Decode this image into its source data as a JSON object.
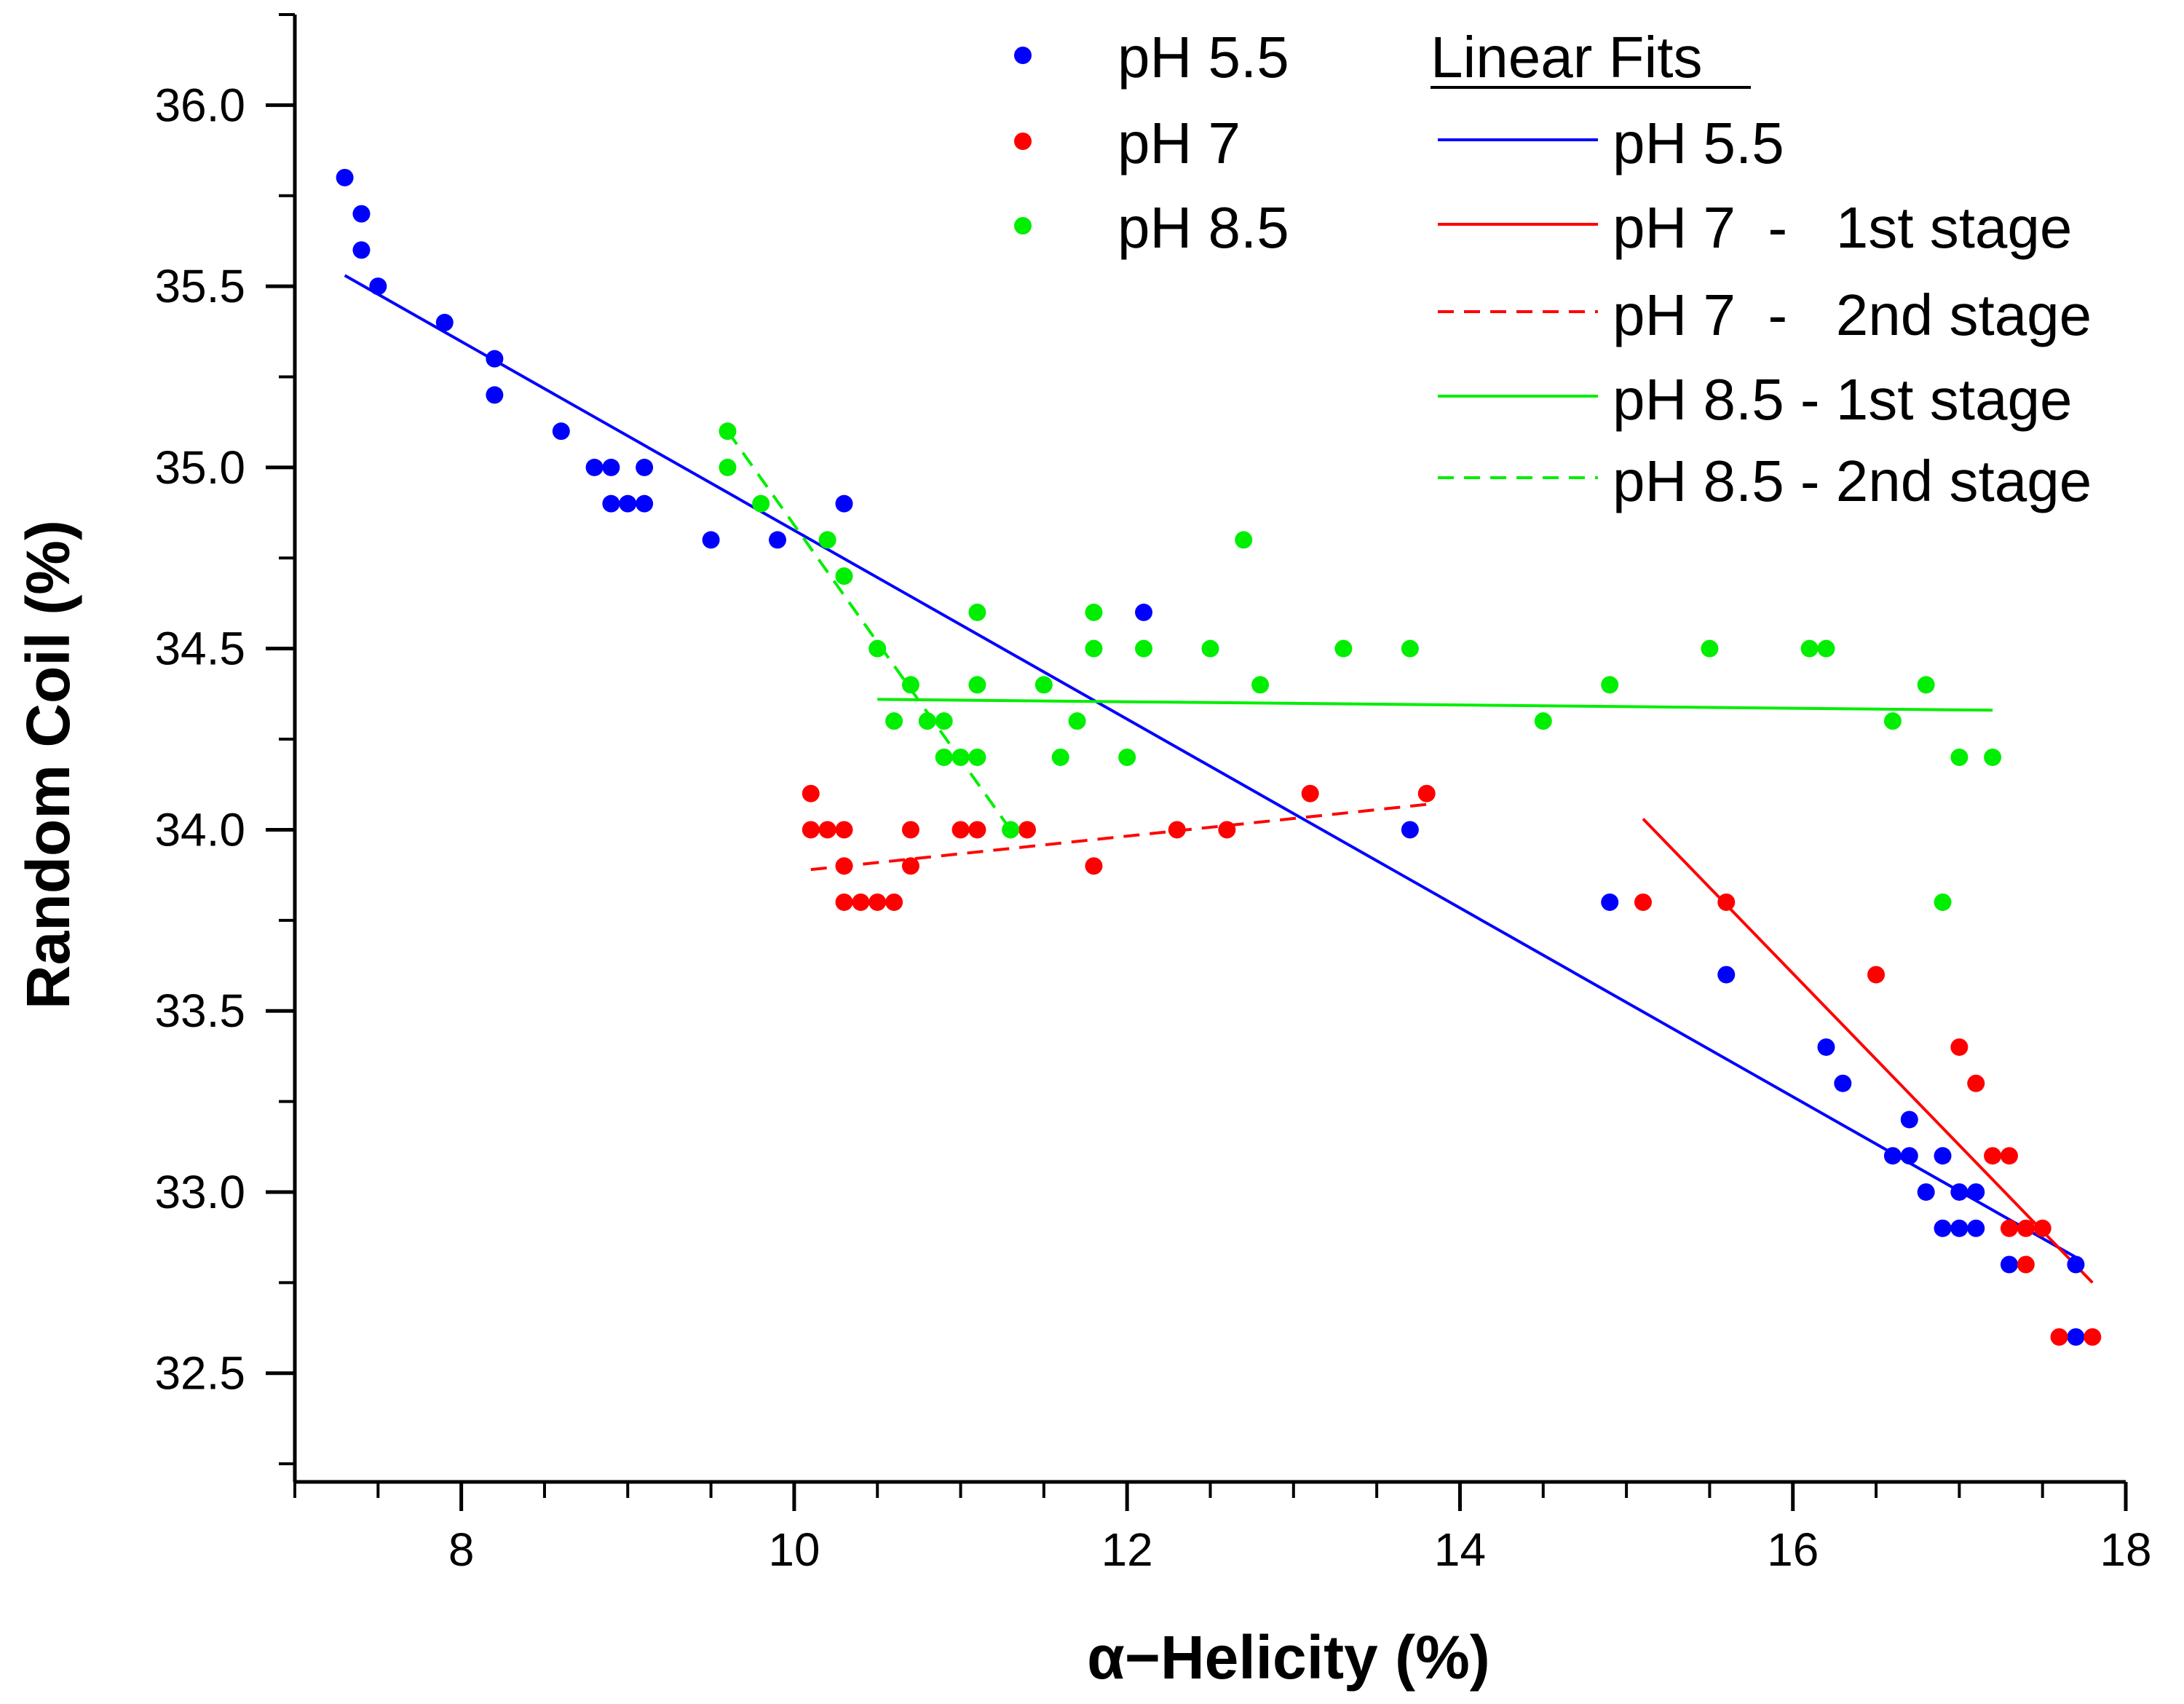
{
  "chart_data": {
    "type": "scatter",
    "xlabel": "α−Helicity (%)",
    "ylabel": "Random Coil (%)",
    "xlim": [
      7,
      18
    ],
    "ylim": [
      32.2,
      36.25
    ],
    "x_ticks": [
      8,
      10,
      12,
      14,
      16,
      18
    ],
    "y_ticks": [
      32.5,
      33.0,
      33.5,
      34.0,
      34.5,
      35.0,
      35.5,
      36.0
    ],
    "x_minor_step": 0.5,
    "y_minor_step": 0.25,
    "grid": false,
    "legend_placement": "top-right",
    "series": [
      {
        "name": "pH 5.5",
        "color": "#0000ff",
        "points": [
          [
            7.3,
            35.8
          ],
          [
            7.4,
            35.7
          ],
          [
            7.4,
            35.6
          ],
          [
            7.5,
            35.5
          ],
          [
            7.9,
            35.4
          ],
          [
            8.2,
            35.3
          ],
          [
            8.2,
            35.2
          ],
          [
            8.6,
            35.1
          ],
          [
            8.8,
            35.0
          ],
          [
            8.9,
            35.0
          ],
          [
            9.1,
            35.0
          ],
          [
            8.9,
            34.9
          ],
          [
            9.0,
            34.9
          ],
          [
            9.1,
            34.9
          ],
          [
            10.3,
            34.9
          ],
          [
            9.5,
            34.8
          ],
          [
            9.9,
            34.8
          ],
          [
            12.1,
            34.6
          ],
          [
            13.7,
            34.0
          ],
          [
            14.9,
            33.8
          ],
          [
            15.6,
            33.6
          ],
          [
            16.2,
            33.4
          ],
          [
            16.3,
            33.3
          ],
          [
            16.7,
            33.2
          ],
          [
            16.6,
            33.1
          ],
          [
            16.7,
            33.1
          ],
          [
            16.9,
            33.1
          ],
          [
            16.8,
            33.0
          ],
          [
            17.0,
            33.0
          ],
          [
            17.1,
            33.0
          ],
          [
            16.9,
            32.9
          ],
          [
            17.0,
            32.9
          ],
          [
            17.1,
            32.9
          ],
          [
            17.3,
            32.8
          ],
          [
            17.7,
            32.8
          ],
          [
            17.7,
            32.6
          ]
        ]
      },
      {
        "name": "pH 7",
        "color": "#ff0000",
        "points": [
          [
            10.1,
            34.1
          ],
          [
            13.1,
            34.1
          ],
          [
            13.8,
            34.1
          ],
          [
            10.1,
            34.0
          ],
          [
            10.2,
            34.0
          ],
          [
            10.3,
            34.0
          ],
          [
            10.7,
            34.0
          ],
          [
            11.0,
            34.0
          ],
          [
            11.1,
            34.0
          ],
          [
            11.4,
            34.0
          ],
          [
            12.3,
            34.0
          ],
          [
            12.6,
            34.0
          ],
          [
            10.3,
            33.9
          ],
          [
            10.7,
            33.9
          ],
          [
            11.8,
            33.9
          ],
          [
            10.3,
            33.8
          ],
          [
            10.4,
            33.8
          ],
          [
            10.5,
            33.8
          ],
          [
            10.6,
            33.8
          ],
          [
            15.1,
            33.8
          ],
          [
            15.6,
            33.8
          ],
          [
            16.5,
            33.6
          ],
          [
            17.0,
            33.4
          ],
          [
            17.1,
            33.3
          ],
          [
            17.2,
            33.1
          ],
          [
            17.3,
            33.1
          ],
          [
            17.3,
            32.9
          ],
          [
            17.4,
            32.9
          ],
          [
            17.5,
            32.9
          ],
          [
            17.4,
            32.8
          ],
          [
            17.6,
            32.6
          ],
          [
            17.8,
            32.6
          ]
        ]
      },
      {
        "name": "pH 8.5",
        "color": "#00ee00",
        "points": [
          [
            9.6,
            35.1
          ],
          [
            9.6,
            35.0
          ],
          [
            9.8,
            34.9
          ],
          [
            10.2,
            34.8
          ],
          [
            12.7,
            34.8
          ],
          [
            10.3,
            34.7
          ],
          [
            11.1,
            34.6
          ],
          [
            11.8,
            34.6
          ],
          [
            10.5,
            34.5
          ],
          [
            11.8,
            34.5
          ],
          [
            12.1,
            34.5
          ],
          [
            12.5,
            34.5
          ],
          [
            13.3,
            34.5
          ],
          [
            13.7,
            34.5
          ],
          [
            15.5,
            34.5
          ],
          [
            16.1,
            34.5
          ],
          [
            16.2,
            34.5
          ],
          [
            10.7,
            34.4
          ],
          [
            11.1,
            34.4
          ],
          [
            11.5,
            34.4
          ],
          [
            12.8,
            34.4
          ],
          [
            14.9,
            34.4
          ],
          [
            16.8,
            34.4
          ],
          [
            10.6,
            34.3
          ],
          [
            10.8,
            34.3
          ],
          [
            10.9,
            34.3
          ],
          [
            11.7,
            34.3
          ],
          [
            14.5,
            34.3
          ],
          [
            16.6,
            34.3
          ],
          [
            10.9,
            34.2
          ],
          [
            11.0,
            34.2
          ],
          [
            11.1,
            34.2
          ],
          [
            11.6,
            34.2
          ],
          [
            12.0,
            34.2
          ],
          [
            17.0,
            34.2
          ],
          [
            17.2,
            34.2
          ],
          [
            11.3,
            34.0
          ],
          [
            16.9,
            33.8
          ]
        ]
      }
    ],
    "fits": [
      {
        "name": "pH 5.5",
        "color": "#0000ff",
        "dashed": false,
        "x": [
          7.3,
          17.7
        ],
        "y": [
          35.53,
          32.82
        ]
      },
      {
        "name": "pH 7  -   1st stage",
        "color": "#ff0000",
        "dashed": false,
        "x": [
          15.1,
          17.8
        ],
        "y": [
          34.03,
          32.75
        ]
      },
      {
        "name": "pH 7  -   2nd stage",
        "color": "#ff0000",
        "dashed": true,
        "x": [
          10.1,
          13.8
        ],
        "y": [
          33.89,
          34.07
        ]
      },
      {
        "name": "pH 8.5 - 1st stage",
        "color": "#00ee00",
        "dashed": false,
        "x": [
          10.5,
          17.2
        ],
        "y": [
          34.36,
          34.33
        ]
      },
      {
        "name": "pH 8.5 - 2nd stage",
        "color": "#00ee00",
        "dashed": true,
        "x": [
          9.6,
          11.3
        ],
        "y": [
          35.1,
          34.0
        ]
      }
    ],
    "legend": {
      "markers": [
        "pH 5.5",
        "pH 7",
        "pH 8.5"
      ],
      "fits_title": "Linear Fits",
      "fits": [
        "pH 5.5",
        "pH 7  -   1st stage",
        "pH 7  -   2nd stage",
        "pH 8.5 - 1st stage",
        "pH 8.5 - 2nd stage"
      ]
    }
  }
}
